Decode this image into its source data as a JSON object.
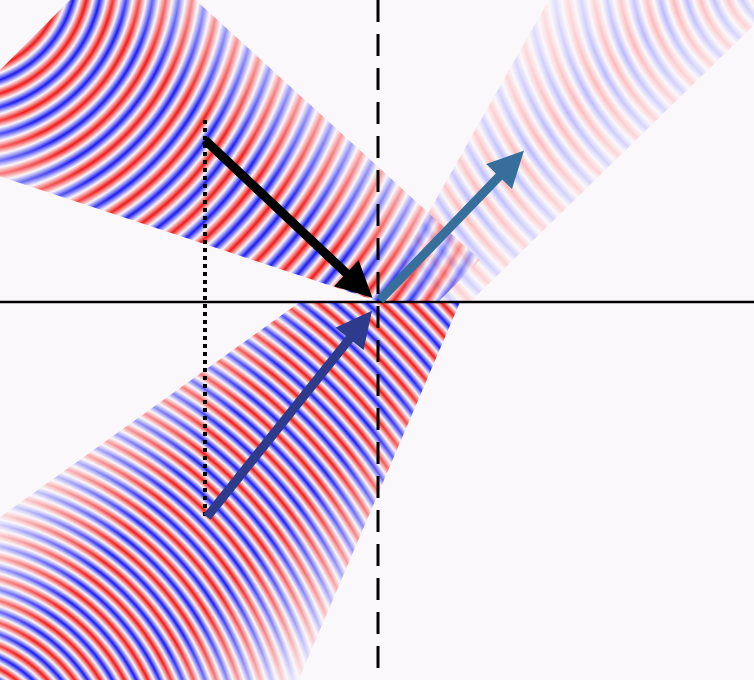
{
  "title": "",
  "colors": {
    "background": "#fbf8fb",
    "wave_red": "#f01818",
    "wave_blue": "#1a1af0",
    "incident_arrow": "#000000",
    "reflected_arrow": "#366f9c",
    "transmitted_arrow": "#2e3a8c",
    "interface_line": "#000000",
    "normal_line": "#000000",
    "projection_line": "#000000"
  },
  "elements": {
    "interface": "horizontal-interface-line",
    "normal": "dashed-normal-line",
    "incident": "incident-wave-arrow",
    "reflected": "reflected-wave-arrow",
    "transmitted": "transmitted-wave-arrow",
    "projection": "dotted-projection-line"
  }
}
